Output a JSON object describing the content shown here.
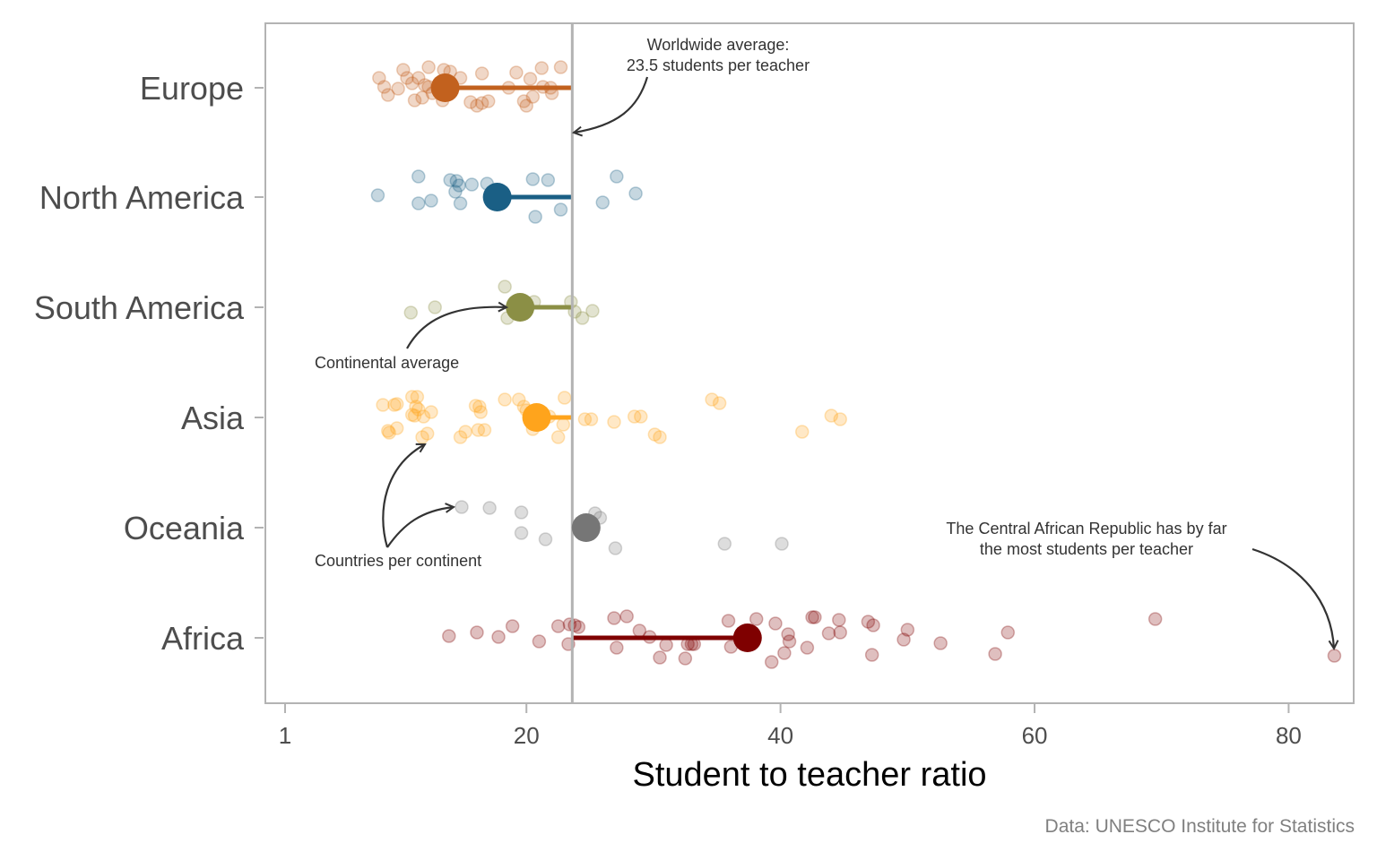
{
  "chart_data": {
    "type": "scatter",
    "title": "",
    "xlabel": "Student to teacher ratio",
    "ylabel": "",
    "xlim": [
      -0.5,
      85
    ],
    "xticks": [
      1,
      20,
      40,
      60,
      80
    ],
    "grid": false,
    "caption": "Data: UNESCO Institute for Statistics",
    "worldwide_average": 23.5,
    "categories": [
      "Europe",
      "North America",
      "South America",
      "Asia",
      "Oceania",
      "Africa"
    ],
    "series": [
      {
        "name": "Europe",
        "color": "#c2611e",
        "average": 13.6,
        "points": [
          [
            8.4,
            -11
          ],
          [
            10.6,
            -11
          ],
          [
            10.3,
            -20
          ],
          [
            12.3,
            -23
          ],
          [
            13.5,
            -20
          ],
          [
            14.8,
            -11
          ],
          [
            8.8,
            -1
          ],
          [
            9.9,
            1
          ],
          [
            11.0,
            -5
          ],
          [
            11.5,
            -11
          ],
          [
            12.0,
            -3
          ],
          [
            12.3,
            -1
          ],
          [
            14.0,
            -18
          ],
          [
            16.5,
            -16
          ],
          [
            19.2,
            -17
          ],
          [
            20.3,
            -10
          ],
          [
            21.2,
            -22
          ],
          [
            22.7,
            -23
          ],
          [
            9.1,
            8
          ],
          [
            11.2,
            14
          ],
          [
            11.8,
            11
          ],
          [
            12.6,
            6
          ],
          [
            13.6,
            5
          ],
          [
            13.4,
            14
          ],
          [
            15.6,
            16
          ],
          [
            16.1,
            20
          ],
          [
            16.5,
            17
          ],
          [
            17.0,
            15
          ],
          [
            18.6,
            0
          ],
          [
            19.8,
            15
          ],
          [
            20.0,
            20
          ],
          [
            20.5,
            10
          ],
          [
            21.3,
            -1
          ],
          [
            21.9,
            0
          ],
          [
            22.0,
            6
          ]
        ]
      },
      {
        "name": "North America",
        "color": "#1a5f85",
        "average": 17.7,
        "points": [
          [
            8.3,
            -2
          ],
          [
            11.5,
            -23
          ],
          [
            11.5,
            7
          ],
          [
            12.5,
            4
          ],
          [
            14.0,
            -19
          ],
          [
            14.5,
            -18
          ],
          [
            14.7,
            -13
          ],
          [
            14.4,
            -6
          ],
          [
            14.8,
            7
          ],
          [
            15.7,
            -14
          ],
          [
            16.9,
            -15
          ],
          [
            17.8,
            0
          ],
          [
            20.5,
            -20
          ],
          [
            21.7,
            -19
          ],
          [
            20.7,
            22
          ],
          [
            22.7,
            14
          ],
          [
            26.0,
            6
          ],
          [
            27.1,
            -23
          ],
          [
            28.6,
            -4
          ]
        ]
      },
      {
        "name": "South America",
        "color": "#8b8f45",
        "average": 19.5,
        "points": [
          [
            10.9,
            6
          ],
          [
            12.8,
            0
          ],
          [
            18.3,
            -23
          ],
          [
            18.5,
            12
          ],
          [
            20.6,
            -6
          ],
          [
            23.5,
            -6
          ],
          [
            23.8,
            5
          ],
          [
            24.4,
            12
          ],
          [
            25.2,
            4
          ]
        ]
      },
      {
        "name": "Asia",
        "color": "#ffa41c",
        "average": 20.8,
        "points": [
          [
            8.7,
            -14
          ],
          [
            9.8,
            -15
          ],
          [
            9.6,
            -14
          ],
          [
            11.0,
            -23
          ],
          [
            11.4,
            -23
          ],
          [
            11.0,
            -3
          ],
          [
            11.2,
            -2
          ],
          [
            11.9,
            -1
          ],
          [
            11.5,
            -9
          ],
          [
            11.3,
            -12
          ],
          [
            12.5,
            -6
          ],
          [
            16.0,
            -13
          ],
          [
            16.3,
            -12
          ],
          [
            16.4,
            -6
          ],
          [
            18.3,
            -20
          ],
          [
            19.4,
            -20
          ],
          [
            20.0,
            -8
          ],
          [
            19.8,
            -12
          ],
          [
            21.8,
            -1
          ],
          [
            23.0,
            -22
          ],
          [
            9.1,
            15
          ],
          [
            9.2,
            17
          ],
          [
            9.8,
            12
          ],
          [
            11.8,
            22
          ],
          [
            12.2,
            18
          ],
          [
            14.8,
            22
          ],
          [
            15.2,
            16
          ],
          [
            16.2,
            14
          ],
          [
            16.7,
            14
          ],
          [
            20.5,
            13
          ],
          [
            22.5,
            22
          ],
          [
            22.9,
            8
          ],
          [
            24.6,
            2
          ],
          [
            25.1,
            2
          ],
          [
            26.9,
            5
          ],
          [
            28.5,
            -1
          ],
          [
            29.0,
            -1
          ],
          [
            30.1,
            19
          ],
          [
            30.5,
            22
          ],
          [
            34.6,
            -20
          ],
          [
            35.2,
            -16
          ],
          [
            41.7,
            16
          ],
          [
            44.0,
            -2
          ],
          [
            44.7,
            2
          ]
        ]
      },
      {
        "name": "Oceania",
        "color": "#767676",
        "average": 24.7,
        "points": [
          [
            14.9,
            -23
          ],
          [
            17.1,
            -22
          ],
          [
            19.6,
            -17
          ],
          [
            19.6,
            6
          ],
          [
            21.5,
            13
          ],
          [
            25.4,
            -16
          ],
          [
            25.8,
            -11
          ],
          [
            27.0,
            23
          ],
          [
            35.6,
            18
          ],
          [
            40.1,
            18
          ]
        ]
      },
      {
        "name": "Africa",
        "color": "#7f0000",
        "average": 37.4,
        "points": [
          [
            13.9,
            -2
          ],
          [
            16.1,
            -6
          ],
          [
            17.8,
            -1
          ],
          [
            18.9,
            -13
          ],
          [
            21.0,
            4
          ],
          [
            22.5,
            -13
          ],
          [
            23.3,
            7
          ],
          [
            23.4,
            -15
          ],
          [
            23.8,
            -14
          ],
          [
            24.1,
            -12
          ],
          [
            26.9,
            -22
          ],
          [
            27.9,
            -24
          ],
          [
            27.1,
            11
          ],
          [
            28.9,
            -8
          ],
          [
            29.7,
            -1
          ],
          [
            30.5,
            22
          ],
          [
            31.0,
            8
          ],
          [
            32.7,
            7
          ],
          [
            33.0,
            7
          ],
          [
            33.2,
            7
          ],
          [
            32.5,
            23
          ],
          [
            35.9,
            -19
          ],
          [
            36.1,
            10
          ],
          [
            38.1,
            -21
          ],
          [
            39.6,
            -16
          ],
          [
            39.3,
            27
          ],
          [
            40.3,
            17
          ],
          [
            40.6,
            -4
          ],
          [
            40.7,
            4
          ],
          [
            42.1,
            11
          ],
          [
            42.5,
            -23
          ],
          [
            42.7,
            -23
          ],
          [
            43.8,
            -5
          ],
          [
            44.6,
            -20
          ],
          [
            44.7,
            -6
          ],
          [
            46.9,
            -18
          ],
          [
            47.3,
            -14
          ],
          [
            47.2,
            19
          ],
          [
            49.7,
            2
          ],
          [
            50.0,
            -9
          ],
          [
            52.6,
            6
          ],
          [
            56.9,
            18
          ],
          [
            57.9,
            -6
          ],
          [
            69.5,
            -21
          ],
          [
            83.6,
            20
          ]
        ]
      }
    ],
    "annotations": [
      {
        "text": [
          "Worldwide average:",
          "23.5 students per teacher"
        ]
      },
      {
        "text": [
          "Continental average"
        ]
      },
      {
        "text": [
          "Countries per continent"
        ]
      },
      {
        "text": [
          "The Central African Republic has by far",
          "the most students per teacher"
        ]
      }
    ]
  }
}
